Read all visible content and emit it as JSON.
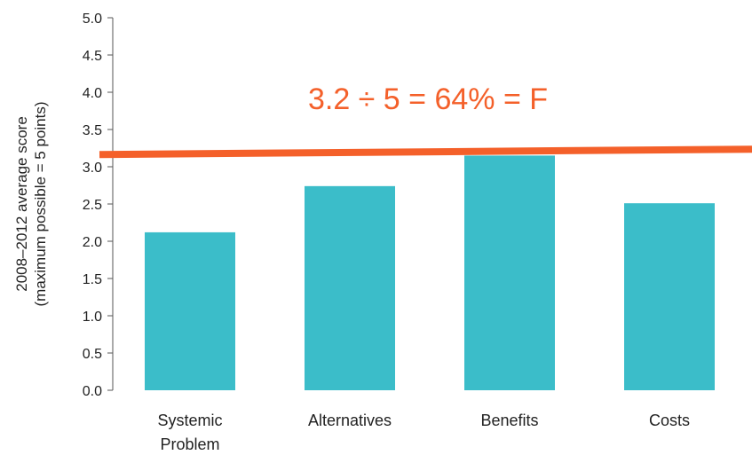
{
  "chart_data": {
    "type": "bar",
    "categories": [
      [
        "Systemic",
        "Problem"
      ],
      [
        "Alternatives"
      ],
      [
        "Benefits"
      ],
      [
        "Costs"
      ]
    ],
    "values": [
      2.12,
      2.74,
      3.15,
      2.51
    ],
    "ylabel": [
      "2008–2012 average score",
      "(maximum possible = 5 points)"
    ],
    "ylim": [
      0,
      5
    ],
    "yticks": [
      "0.0",
      "0.5",
      "1.0",
      "1.5",
      "2.0",
      "2.5",
      "3.0",
      "3.5",
      "4.0",
      "4.5",
      "5.0"
    ],
    "reference_line": {
      "value": 3.2
    },
    "annotation": "3.2 ÷ 5 = 64% = F",
    "grid": false,
    "colors": {
      "bar": "#3bbdc9",
      "line": "#f4602a",
      "annotation": "#f4602a",
      "axis": "#555555"
    }
  }
}
